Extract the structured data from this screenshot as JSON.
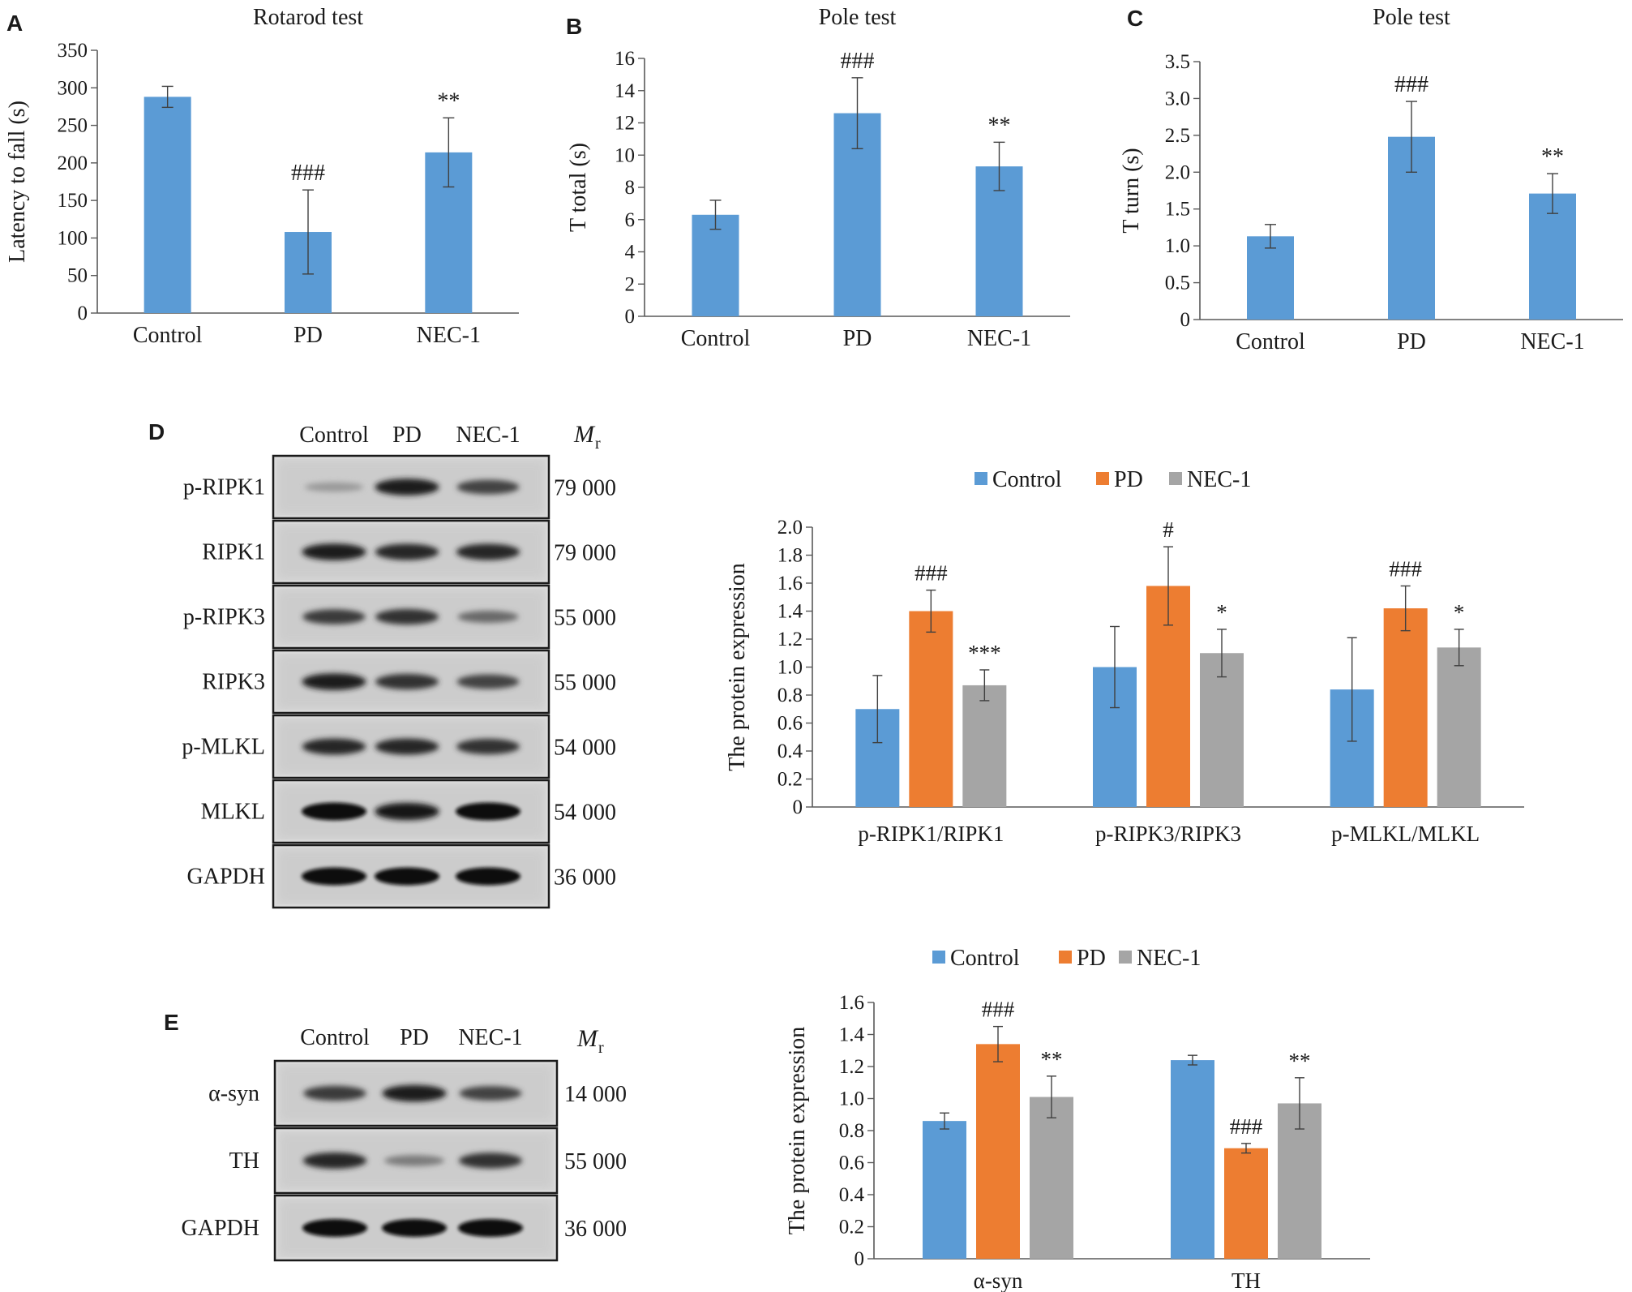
{
  "colors": {
    "control": "#5b9bd5",
    "pd": "#ed7d31",
    "nec1": "#a5a5a5",
    "axis": "#595959",
    "text": "#1a1a1a"
  },
  "panels": {
    "A": {
      "letter": "A"
    },
    "B": {
      "letter": "B"
    },
    "C": {
      "letter": "C"
    },
    "D": {
      "letter": "D"
    },
    "E": {
      "letter": "E"
    }
  },
  "chart_data": [
    {
      "id": "A",
      "type": "bar",
      "title": "Rotarod test",
      "ylabel": "Latency to fall (s)",
      "xlabel": "",
      "categories": [
        "Control",
        "PD",
        "NEC-1"
      ],
      "values": [
        288,
        108,
        214
      ],
      "errors": [
        14,
        56,
        46
      ],
      "annotations": [
        "",
        "###",
        "**"
      ],
      "ylim": [
        0,
        350
      ],
      "ticks": [
        0,
        50,
        100,
        150,
        200,
        250,
        300,
        350
      ],
      "grid": false
    },
    {
      "id": "B",
      "type": "bar",
      "title": "Pole test",
      "ylabel": "T total (s)",
      "xlabel": "",
      "categories": [
        "Control",
        "PD",
        "NEC-1"
      ],
      "values": [
        6.3,
        12.6,
        9.3
      ],
      "errors": [
        0.9,
        2.2,
        1.5
      ],
      "annotations": [
        "",
        "###",
        "**"
      ],
      "ylim": [
        0,
        16
      ],
      "ticks": [
        0,
        2,
        4,
        6,
        8,
        10,
        12,
        14,
        16
      ],
      "grid": false
    },
    {
      "id": "C",
      "type": "bar",
      "title": "Pole test",
      "ylabel": "T turn (s)",
      "xlabel": "",
      "categories": [
        "Control",
        "PD",
        "NEC-1"
      ],
      "values": [
        1.13,
        2.48,
        1.71
      ],
      "errors": [
        0.16,
        0.48,
        0.27
      ],
      "annotations": [
        "",
        "###",
        "**"
      ],
      "ylim": [
        0,
        3.5
      ],
      "ticks": [
        "0",
        "0.5",
        "1.0",
        "1.5",
        "2.0",
        "2.5",
        "3.0",
        "3.5"
      ],
      "grid": false
    },
    {
      "id": "D",
      "type": "bar",
      "title": "",
      "ylabel": "The protein expression",
      "xlabel": "",
      "categories": [
        "p-RIPK1/RIPK1",
        "p-RIPK3/RIPK3",
        "p-MLKL/MLKL"
      ],
      "series": [
        {
          "name": "Control",
          "values": [
            0.7,
            1.0,
            0.84
          ],
          "errors": [
            0.24,
            0.29,
            0.37
          ],
          "annotations": [
            "",
            "",
            ""
          ]
        },
        {
          "name": "PD",
          "values": [
            1.4,
            1.58,
            1.42
          ],
          "errors": [
            0.15,
            0.28,
            0.16
          ],
          "annotations": [
            "###",
            "#",
            "###"
          ]
        },
        {
          "name": "NEC-1",
          "values": [
            0.87,
            1.1,
            1.14
          ],
          "errors": [
            0.11,
            0.17,
            0.13
          ],
          "annotations": [
            "***",
            "*",
            "*"
          ]
        }
      ],
      "ylim": [
        0,
        2.0
      ],
      "ticks": [
        "0",
        "0.2",
        "0.4",
        "0.6",
        "0.8",
        "1.0",
        "1.2",
        "1.4",
        "1.6",
        "1.8",
        "2.0"
      ],
      "legend": "top",
      "grid": false
    },
    {
      "id": "E",
      "type": "bar",
      "title": "",
      "ylabel": "The protein expression",
      "xlabel": "",
      "categories": [
        "α-syn",
        "TH"
      ],
      "series": [
        {
          "name": "Control",
          "values": [
            0.86,
            1.24
          ],
          "errors": [
            0.05,
            0.03
          ],
          "annotations": [
            "",
            ""
          ]
        },
        {
          "name": "PD",
          "values": [
            1.34,
            0.69
          ],
          "errors": [
            0.11,
            0.03
          ],
          "annotations": [
            "###",
            "###"
          ]
        },
        {
          "name": "NEC-1",
          "values": [
            1.01,
            0.97
          ],
          "errors": [
            0.13,
            0.16
          ],
          "annotations": [
            "**",
            "**"
          ]
        }
      ],
      "ylim": [
        0,
        1.6
      ],
      "ticks": [
        "0",
        "0.2",
        "0.4",
        "0.6",
        "0.8",
        "1.0",
        "1.2",
        "1.4",
        "1.6"
      ],
      "legend": "top",
      "grid": false
    }
  ],
  "blots": [
    {
      "id": "D",
      "lane_labels": [
        "Control",
        "PD",
        "NEC-1"
      ],
      "mr_label": "M",
      "mr_sub": "r",
      "rows": [
        {
          "protein": "p-RIPK1",
          "mw": "79 000",
          "intensity": [
            0.25,
            0.9,
            0.7
          ]
        },
        {
          "protein": "RIPK1",
          "mw": "79 000",
          "intensity": [
            0.9,
            0.85,
            0.85
          ]
        },
        {
          "protein": "p-RIPK3",
          "mw": "55 000",
          "intensity": [
            0.75,
            0.8,
            0.5
          ]
        },
        {
          "protein": "RIPK3",
          "mw": "55 000",
          "intensity": [
            0.9,
            0.8,
            0.7
          ]
        },
        {
          "protein": "p-MLKL",
          "mw": "54 000",
          "intensity": [
            0.85,
            0.85,
            0.8
          ]
        },
        {
          "protein": "MLKL",
          "mw": "54 000",
          "intensity": [
            1.0,
            0.95,
            1.0
          ]
        },
        {
          "protein": "GAPDH",
          "mw": "36 000",
          "intensity": [
            1.0,
            1.0,
            1.0
          ]
        }
      ]
    },
    {
      "id": "E",
      "lane_labels": [
        "Control",
        "PD",
        "NEC-1"
      ],
      "mr_label": "M",
      "mr_sub": "r",
      "rows": [
        {
          "protein": "α-syn",
          "mw": "14 000",
          "intensity": [
            0.75,
            0.9,
            0.7
          ]
        },
        {
          "protein": "TH",
          "mw": "55 000",
          "intensity": [
            0.85,
            0.4,
            0.8
          ]
        },
        {
          "protein": "GAPDH",
          "mw": "36 000",
          "intensity": [
            1.0,
            1.0,
            1.0
          ]
        }
      ]
    }
  ]
}
